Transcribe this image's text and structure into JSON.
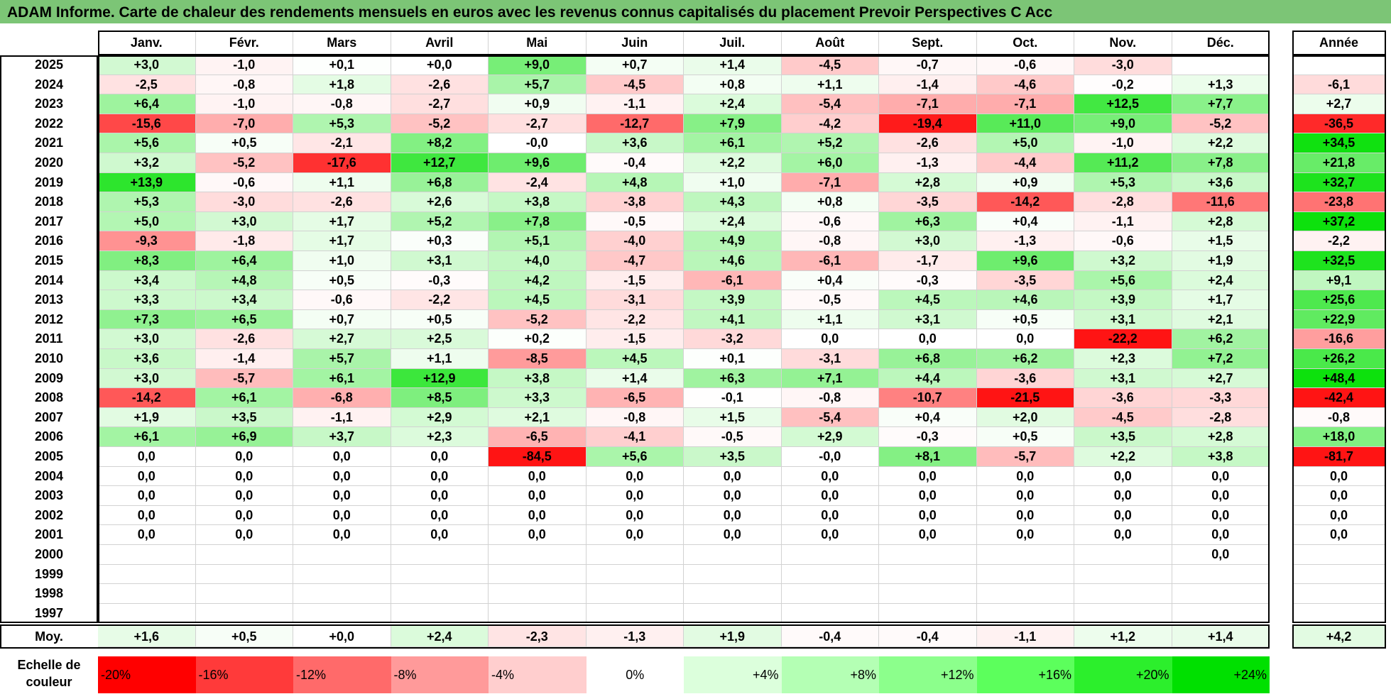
{
  "title": "ADAM Informe. Carte de chaleur des rendements mensuels en euros avec les revenus connus capitalisés du placement Prevoir Perspectives C Acc",
  "chart_data": {
    "type": "heatmap",
    "title": "ADAM Informe. Carte de chaleur des rendements mensuels en euros avec les revenus connus capitalisés du placement Prevoir Perspectives C Acc",
    "columns": [
      "Janv.",
      "Févr.",
      "Mars",
      "Avril",
      "Mai",
      "Juin",
      "Juil.",
      "Août",
      "Sept.",
      "Oct.",
      "Nov.",
      "Déc."
    ],
    "year_column_label": "Année",
    "rows": [
      {
        "year": "2025",
        "values": [
          "+3,0",
          "-1,0",
          "+0,1",
          "+0,0",
          "+9,0",
          "+0,7",
          "+1,4",
          "-4,5",
          "-0,7",
          "-0,6",
          "-3,0",
          ""
        ],
        "annual": ""
      },
      {
        "year": "2024",
        "values": [
          "-2,5",
          "-0,8",
          "+1,8",
          "-2,6",
          "+5,7",
          "-4,5",
          "+0,8",
          "+1,1",
          "-1,4",
          "-4,6",
          "-0,2",
          "+1,3"
        ],
        "annual": "-6,1"
      },
      {
        "year": "2023",
        "values": [
          "+6,4",
          "-1,0",
          "-0,8",
          "-2,7",
          "+0,9",
          "-1,1",
          "+2,4",
          "-5,4",
          "-7,1",
          "-7,1",
          "+12,5",
          "+7,7"
        ],
        "annual": "+2,7"
      },
      {
        "year": "2022",
        "values": [
          "-15,6",
          "-7,0",
          "+5,3",
          "-5,2",
          "-2,7",
          "-12,7",
          "+7,9",
          "-4,2",
          "-19,4",
          "+11,0",
          "+9,0",
          "-5,2"
        ],
        "annual": "-36,5"
      },
      {
        "year": "2021",
        "values": [
          "+5,6",
          "+0,5",
          "-2,1",
          "+8,2",
          "-0,0",
          "+3,6",
          "+6,1",
          "+5,2",
          "-2,6",
          "+5,0",
          "-1,0",
          "+2,2"
        ],
        "annual": "+34,5"
      },
      {
        "year": "2020",
        "values": [
          "+3,2",
          "-5,2",
          "-17,6",
          "+12,7",
          "+9,6",
          "-0,4",
          "+2,2",
          "+6,0",
          "-1,3",
          "-4,4",
          "+11,2",
          "+7,8"
        ],
        "annual": "+21,8"
      },
      {
        "year": "2019",
        "values": [
          "+13,9",
          "-0,6",
          "+1,1",
          "+6,8",
          "-2,4",
          "+4,8",
          "+1,0",
          "-7,1",
          "+2,8",
          "+0,9",
          "+5,3",
          "+3,6"
        ],
        "annual": "+32,7"
      },
      {
        "year": "2018",
        "values": [
          "+5,3",
          "-3,0",
          "-2,6",
          "+2,6",
          "+3,8",
          "-3,8",
          "+4,3",
          "+0,8",
          "-3,5",
          "-14,2",
          "-2,8",
          "-11,6"
        ],
        "annual": "-23,8"
      },
      {
        "year": "2017",
        "values": [
          "+5,0",
          "+3,0",
          "+1,7",
          "+5,2",
          "+7,8",
          "-0,5",
          "+2,4",
          "-0,6",
          "+6,3",
          "+0,4",
          "-1,1",
          "+2,8"
        ],
        "annual": "+37,2"
      },
      {
        "year": "2016",
        "values": [
          "-9,3",
          "-1,8",
          "+1,7",
          "+0,3",
          "+5,1",
          "-4,0",
          "+4,9",
          "-0,8",
          "+3,0",
          "-1,3",
          "-0,6",
          "+1,5"
        ],
        "annual": "-2,2"
      },
      {
        "year": "2015",
        "values": [
          "+8,3",
          "+6,4",
          "+1,0",
          "+3,1",
          "+4,0",
          "-4,7",
          "+4,6",
          "-6,1",
          "-1,7",
          "+9,6",
          "+3,2",
          "+1,9"
        ],
        "annual": "+32,5"
      },
      {
        "year": "2014",
        "values": [
          "+3,4",
          "+4,8",
          "+0,5",
          "-0,3",
          "+4,2",
          "-1,5",
          "-6,1",
          "+0,4",
          "-0,3",
          "-3,5",
          "+5,6",
          "+2,4"
        ],
        "annual": "+9,1"
      },
      {
        "year": "2013",
        "values": [
          "+3,3",
          "+3,4",
          "-0,6",
          "-2,2",
          "+4,5",
          "-3,1",
          "+3,9",
          "-0,5",
          "+4,5",
          "+4,6",
          "+3,9",
          "+1,7"
        ],
        "annual": "+25,6"
      },
      {
        "year": "2012",
        "values": [
          "+7,3",
          "+6,5",
          "+0,7",
          "+0,5",
          "-5,2",
          "-2,2",
          "+4,1",
          "+1,1",
          "+3,1",
          "+0,5",
          "+3,1",
          "+2,1"
        ],
        "annual": "+22,9"
      },
      {
        "year": "2011",
        "values": [
          "+3,0",
          "-2,6",
          "+2,7",
          "+2,5",
          "+0,2",
          "-1,5",
          "-3,2",
          "0,0",
          "0,0",
          "0,0",
          "-22,2",
          "+6,2"
        ],
        "annual": "-16,6"
      },
      {
        "year": "2010",
        "values": [
          "+3,6",
          "-1,4",
          "+5,7",
          "+1,1",
          "-8,5",
          "+4,5",
          "+0,1",
          "-3,1",
          "+6,8",
          "+6,2",
          "+2,3",
          "+7,2"
        ],
        "annual": "+26,2"
      },
      {
        "year": "2009",
        "values": [
          "+3,0",
          "-5,7",
          "+6,1",
          "+12,9",
          "+3,8",
          "+1,4",
          "+6,3",
          "+7,1",
          "+4,4",
          "-3,6",
          "+3,1",
          "+2,7"
        ],
        "annual": "+48,4"
      },
      {
        "year": "2008",
        "values": [
          "-14,2",
          "+6,1",
          "-6,8",
          "+8,5",
          "+3,3",
          "-6,5",
          "-0,1",
          "-0,8",
          "-10,7",
          "-21,5",
          "-3,6",
          "-3,3"
        ],
        "annual": "-42,4"
      },
      {
        "year": "2007",
        "values": [
          "+1,9",
          "+3,5",
          "-1,1",
          "+2,9",
          "+2,1",
          "-0,8",
          "+1,5",
          "-5,4",
          "+0,4",
          "+2,0",
          "-4,5",
          "-2,8"
        ],
        "annual": "-0,8"
      },
      {
        "year": "2006",
        "values": [
          "+6,1",
          "+6,9",
          "+3,7",
          "+2,3",
          "-6,5",
          "-4,1",
          "-0,5",
          "+2,9",
          "-0,3",
          "+0,5",
          "+3,5",
          "+2,8"
        ],
        "annual": "+18,0"
      },
      {
        "year": "2005",
        "values": [
          "0,0",
          "0,0",
          "0,0",
          "0,0",
          "-84,5",
          "+5,6",
          "+3,5",
          "-0,0",
          "+8,1",
          "-5,7",
          "+2,2",
          "+3,8"
        ],
        "annual": "-81,7"
      },
      {
        "year": "2004",
        "values": [
          "0,0",
          "0,0",
          "0,0",
          "0,0",
          "0,0",
          "0,0",
          "0,0",
          "0,0",
          "0,0",
          "0,0",
          "0,0",
          "0,0"
        ],
        "annual": "0,0"
      },
      {
        "year": "2003",
        "values": [
          "0,0",
          "0,0",
          "0,0",
          "0,0",
          "0,0",
          "0,0",
          "0,0",
          "0,0",
          "0,0",
          "0,0",
          "0,0",
          "0,0"
        ],
        "annual": "0,0"
      },
      {
        "year": "2002",
        "values": [
          "0,0",
          "0,0",
          "0,0",
          "0,0",
          "0,0",
          "0,0",
          "0,0",
          "0,0",
          "0,0",
          "0,0",
          "0,0",
          "0,0"
        ],
        "annual": "0,0"
      },
      {
        "year": "2001",
        "values": [
          "0,0",
          "0,0",
          "0,0",
          "0,0",
          "0,0",
          "0,0",
          "0,0",
          "0,0",
          "0,0",
          "0,0",
          "0,0",
          "0,0"
        ],
        "annual": "0,0"
      },
      {
        "year": "2000",
        "values": [
          "",
          "",
          "",
          "",
          "",
          "",
          "",
          "",
          "",
          "",
          "",
          "0,0"
        ],
        "annual": ""
      },
      {
        "year": "1999",
        "values": [
          "",
          "",
          "",
          "",
          "",
          "",
          "",
          "",
          "",
          "",
          "",
          ""
        ],
        "annual": ""
      },
      {
        "year": "1998",
        "values": [
          "",
          "",
          "",
          "",
          "",
          "",
          "",
          "",
          "",
          "",
          "",
          ""
        ],
        "annual": ""
      },
      {
        "year": "1997",
        "values": [
          "",
          "",
          "",
          "",
          "",
          "",
          "",
          "",
          "",
          "",
          "",
          ""
        ],
        "annual": ""
      }
    ],
    "average": {
      "label": "Moy.",
      "values": [
        "+1,6",
        "+0,5",
        "+0,0",
        "+2,4",
        "-2,3",
        "-1,3",
        "+1,9",
        "-0,4",
        "-0,4",
        "-1,1",
        "+1,2",
        "+1,4"
      ],
      "annual": "+4,2"
    },
    "color_scale": {
      "label": "Echelle de couleur",
      "stops": [
        "-20%",
        "-16%",
        "-12%",
        "-8%",
        "-4%",
        "0%",
        "+4%",
        "+8%",
        "+12%",
        "+16%",
        "+20%",
        "+24%"
      ],
      "colors": [
        "#ff0000",
        "#ff3a3a",
        "#ff6a6a",
        "#ff9a9a",
        "#ffcece",
        "#ffffff",
        "#dcffdc",
        "#b4ffb4",
        "#8cff8c",
        "#5cff5c",
        "#2cef2c",
        "#00e000"
      ]
    }
  }
}
